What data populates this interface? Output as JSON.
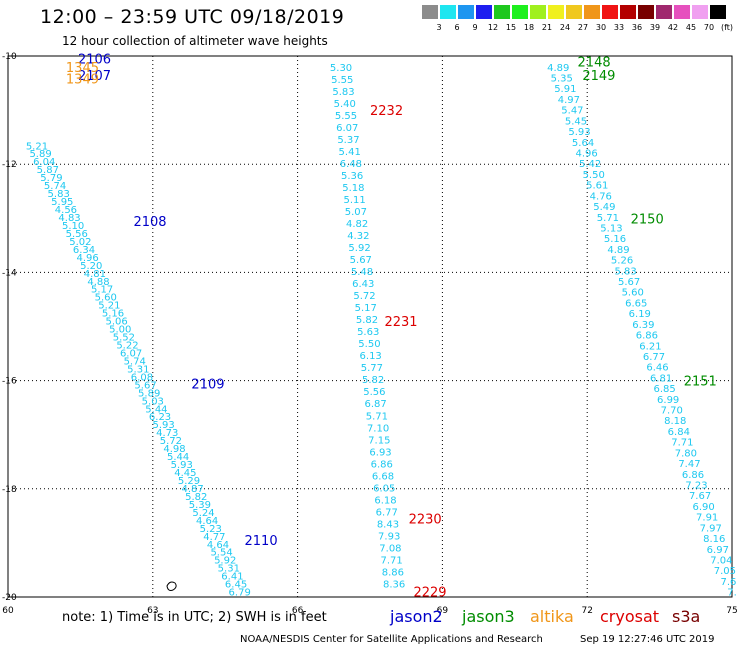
{
  "header": {
    "title": "12:00 – 23:59 UTC 09/18/2019",
    "subtitle": "12 hour collection of altimeter wave heights"
  },
  "colorbar": {
    "colors": [
      "#8c8c8c",
      "#1ee6f0",
      "#1e96f0",
      "#1e1ef0",
      "#1ec81e",
      "#1ef01e",
      "#a0f01e",
      "#f0f01e",
      "#f0c81e",
      "#f09619",
      "#f01414",
      "#b40000",
      "#780000",
      "#a0286e",
      "#e650be",
      "#f0a0f0",
      "#000000"
    ],
    "labels": [
      "3",
      "6",
      "9",
      "12",
      "15",
      "18",
      "21",
      "24",
      "27",
      "30",
      "33",
      "36",
      "39",
      "42",
      "45",
      "70",
      "(ft)"
    ]
  },
  "chart_data": {
    "type": "map",
    "xlim": [
      60,
      75
    ],
    "ylim": [
      -20,
      -10
    ],
    "xticks": [
      "60",
      "63",
      "66",
      "69",
      "72",
      "75"
    ],
    "yticks": [
      "-10",
      "-12",
      "-14",
      "-16",
      "-18",
      "-20"
    ],
    "point_color": "#1ec8f0",
    "tracks": [
      {
        "name": "track-1",
        "values": [
          "5.30",
          "5.55",
          "5.83",
          "5.40",
          "5.55",
          "6.07",
          "5.37",
          "5.41",
          "6.48",
          "5.36",
          "5.18",
          "5.11",
          "5.07",
          "4.82",
          "4.32",
          "5.92",
          "5.67",
          "5.48",
          "6.43",
          "5.72",
          "5.17",
          "5.82",
          "5.63",
          "5.50",
          "6.13",
          "5.77",
          "5.82",
          "5.56",
          "6.87",
          "5.71",
          "7.10",
          "7.15",
          "6.93",
          "6.86",
          "6.68",
          "6.05",
          "6.18",
          "6.77",
          "8.43",
          "7.93",
          "7.08",
          "7.71",
          "8.86",
          "8.36"
        ],
        "lon_start": 66.9,
        "lat_start": -10.2,
        "lon_end": 68.0,
        "lat_end": -19.75
      },
      {
        "name": "track-2",
        "values": [
          "4.89",
          "5.35",
          "5.91",
          "4.97",
          "5.47",
          "5.45",
          "5.93",
          "5.64",
          "4.96",
          "5.42",
          "5.50",
          "5.61",
          "4.76",
          "5.49",
          "5.71",
          "5.13",
          "5.16",
          "4.89",
          "5.26",
          "5.83",
          "5.67",
          "5.60",
          "6.65",
          "6.19",
          "6.39",
          "6.86",
          "6.21",
          "6.77",
          "6.46",
          "6.81",
          "6.85",
          "6.99",
          "7.70",
          "8.18",
          "6.84",
          "7.71",
          "7.80",
          "7.47",
          "6.86",
          "7.23",
          "7.67",
          "6.90",
          "7.91",
          "7.97",
          "8.16",
          "6.97",
          "7.04",
          "7.05",
          "7.6",
          "7."
        ],
        "lon_start": 71.4,
        "lat_start": -10.2,
        "lon_end": 75.0,
        "lat_end": -19.9
      },
      {
        "name": "track-3",
        "values": [
          "5.21",
          "5.89",
          "6.04",
          "5.87",
          "5.79",
          "5.74",
          "5.83",
          "5.95",
          "4.56",
          "4.83",
          "5.10",
          "5.56",
          "5.02",
          "6.34",
          "4.96",
          "5.20",
          "4.81",
          "4.88",
          "5.17",
          "5.60",
          "5.21",
          "5.16",
          "5.06",
          "5.00",
          "5.52",
          "5.22",
          "6.07",
          "5.74",
          "5.31",
          "6.08",
          "5.67",
          "5.89",
          "5.03",
          "5.44",
          "6.23",
          "5.93",
          "4.73",
          "5.72",
          "4.98",
          "5.44",
          "5.93",
          "4.45",
          "5.29",
          "4.87",
          "5.82",
          "5.39",
          "5.24",
          "4.64",
          "5.23",
          "4.77",
          "4.64",
          "5.54",
          "5.92",
          "5.31",
          "6.41",
          "6.45",
          "6.79"
        ],
        "lon_start": 60.6,
        "lat_start": -11.65,
        "lon_end": 64.8,
        "lat_end": -19.9
      }
    ],
    "pass_labels": [
      {
        "label": "2232",
        "color": "#dc0000",
        "lon": 67.5,
        "lat": -11.0
      },
      {
        "label": "2231",
        "color": "#dc0000",
        "lon": 67.8,
        "lat": -14.9
      },
      {
        "label": "2230",
        "color": "#dc0000",
        "lon": 68.3,
        "lat": -18.55
      },
      {
        "label": "2229",
        "color": "#dc0000",
        "lon": 68.4,
        "lat": -19.9
      },
      {
        "label": "2148",
        "color": "#008c00",
        "lon": 71.8,
        "lat": -10.1
      },
      {
        "label": "2149",
        "color": "#008c00",
        "lon": 71.9,
        "lat": -10.35
      },
      {
        "label": "2150",
        "color": "#008c00",
        "lon": 72.9,
        "lat": -13.0
      },
      {
        "label": "2151",
        "color": "#008c00",
        "lon": 74.0,
        "lat": -16.0
      },
      {
        "label": "2108",
        "color": "#0000c8",
        "lon": 62.6,
        "lat": -13.05
      },
      {
        "label": "2109",
        "color": "#0000c8",
        "lon": 63.8,
        "lat": -16.05
      },
      {
        "label": "2110",
        "color": "#0000c8",
        "lon": 64.9,
        "lat": -18.95
      },
      {
        "label": "2106",
        "color": "#0000c8",
        "lon": 61.45,
        "lat": -10.05
      },
      {
        "label": "2107",
        "color": "#0000c8",
        "lon": 61.45,
        "lat": -10.35
      },
      {
        "label": "1345",
        "color": "#f09619",
        "lon": 61.2,
        "lat": -10.2
      },
      {
        "label": "1349",
        "color": "#f09619",
        "lon": 61.2,
        "lat": -10.42
      }
    ]
  },
  "footer": {
    "note": "note: 1) Time is in UTC; 2) SWH is in feet",
    "credit": "NOAA/NESDIS Center for Satellite Applications and Research",
    "timestamp": "Sep 19 12:27:46 UTC 2019"
  },
  "legend": [
    {
      "name": "jason2",
      "color": "#0000c8"
    },
    {
      "name": "jason3",
      "color": "#008c00"
    },
    {
      "name": "altika",
      "color": "#f09619"
    },
    {
      "name": "cryosat",
      "color": "#dc0000"
    },
    {
      "name": "s3a",
      "color": "#780000"
    }
  ]
}
